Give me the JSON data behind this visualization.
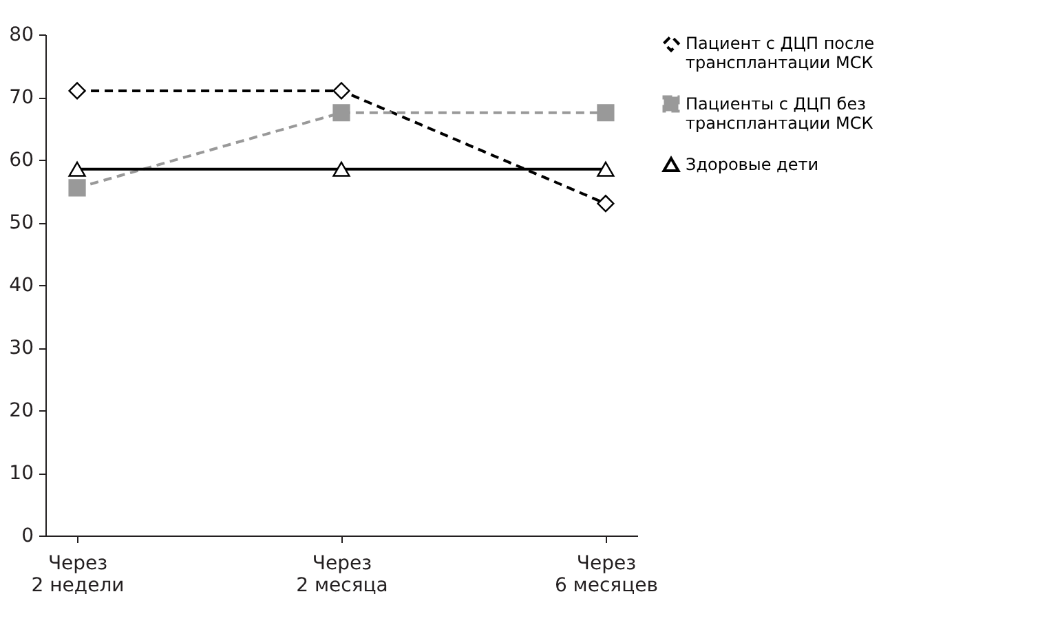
{
  "chart_data": {
    "type": "line",
    "categories": [
      "Через 2 недели",
      "Через 2 месяца",
      "Через 6 месяцев"
    ],
    "series": [
      {
        "name": "Пациент с ДЦП после трансплантации МСК",
        "color": "#000000",
        "marker": "diamond",
        "line_style": "dashed",
        "values": [
          71,
          71,
          53
        ]
      },
      {
        "name": "Пациенты с ДЦП без трансплантации МСК",
        "color": "#999999",
        "marker": "square",
        "line_style": "dashed",
        "values": [
          55.5,
          67.5,
          67.5
        ]
      },
      {
        "name": "Здоровые дети",
        "color": "#000000",
        "marker": "triangle",
        "line_style": "solid",
        "values": [
          58.5,
          58.5,
          58.5
        ]
      }
    ],
    "ylim": [
      0,
      80
    ],
    "yticks": [
      0,
      10,
      20,
      30,
      40,
      50,
      60,
      70,
      80
    ],
    "grid": false,
    "legend": "right"
  }
}
